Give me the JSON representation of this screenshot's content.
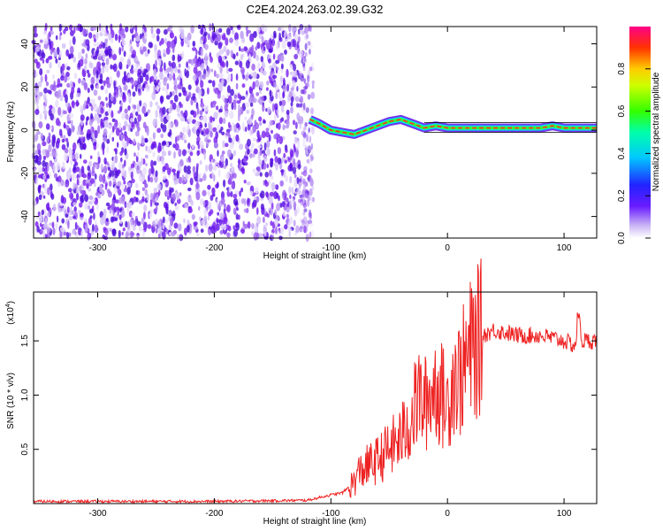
{
  "title": "C2E4.2024.263.02.39.G32",
  "chart_data": [
    {
      "type": "heatmap",
      "title": "C2E4.2024.263.02.39.G32",
      "xlabel": "Height of straight line (km)",
      "ylabel": "Frequency (Hz)",
      "xlim": [
        -355,
        128
      ],
      "ylim": [
        -50,
        48
      ],
      "xticks": [
        -300,
        -200,
        -100,
        0,
        100
      ],
      "yticks": [
        -40,
        -20,
        0,
        20,
        40
      ],
      "noise_region_x": [
        -355,
        -115
      ],
      "signal_trace": {
        "x": [
          -118,
          -110,
          -100,
          -90,
          -80,
          -70,
          -60,
          -50,
          -40,
          -30,
          -20,
          -10,
          0,
          20,
          40,
          60,
          80,
          90,
          100,
          110,
          128
        ],
        "y": [
          5,
          3,
          0,
          -1,
          -2,
          0,
          2,
          4,
          5,
          3,
          1,
          2,
          1,
          1,
          1,
          1,
          1,
          2,
          1,
          1,
          1
        ]
      },
      "colorbar": {
        "label": "Normalized spectral amplitude",
        "range": [
          0,
          1
        ],
        "ticks": [
          "0.0",
          "0.2",
          "0.4",
          "0.6",
          "0.8"
        ]
      }
    },
    {
      "type": "line",
      "xlabel": "Height of straight line (km)",
      "ylabel": "SNR (10 * v/v)",
      "multiplier": "(x10",
      "multiplier_exp": "4",
      "multiplier_close": ")",
      "xlim": [
        -355,
        128
      ],
      "ylim": [
        0,
        1.95
      ],
      "xticks": [
        -300,
        -200,
        -100,
        0,
        100
      ],
      "yticks": [
        0.5,
        1.0,
        1.5
      ],
      "ytick_labels": [
        "0.5",
        "1.0",
        "1.5"
      ],
      "color": "#ee2222",
      "series": [
        {
          "x": [
            -355,
            -300,
            -200,
            -120,
            -100,
            -90,
            -80,
            -75,
            -60,
            -50,
            -40,
            -30,
            -25,
            -20,
            -10,
            0,
            5,
            10,
            20,
            30,
            40,
            60,
            80,
            100,
            110,
            112,
            115,
            128
          ],
          "y": [
            0.02,
            0.02,
            0.02,
            0.03,
            0.08,
            0.1,
            0.2,
            0.3,
            0.4,
            0.5,
            0.6,
            0.8,
            1.0,
            0.9,
            1.1,
            0.9,
            1.2,
            1.15,
            1.4,
            1.55,
            1.6,
            1.55,
            1.55,
            1.5,
            1.45,
            1.8,
            1.5,
            1.5
          ]
        }
      ]
    }
  ]
}
